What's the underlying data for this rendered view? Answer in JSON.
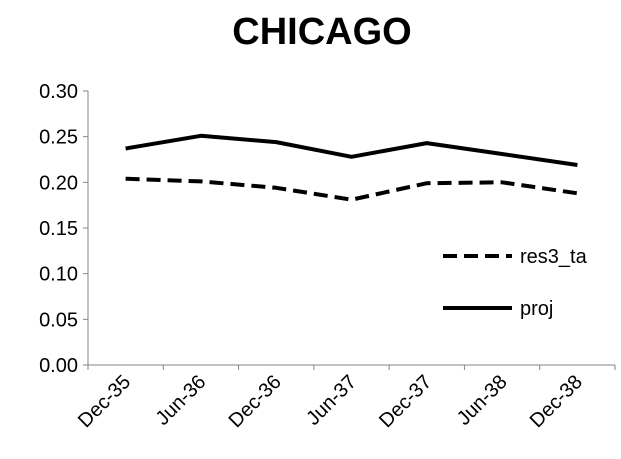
{
  "chart_data": {
    "type": "line",
    "title": "CHICAGO",
    "xlabel": "",
    "ylabel": "",
    "categories": [
      "Dec-35",
      "Jun-36",
      "Dec-36",
      "Jun-37",
      "Dec-37",
      "Jun-38",
      "Dec-38"
    ],
    "ylim": [
      0,
      0.3
    ],
    "yticks": [
      "0.00",
      "0.05",
      "0.10",
      "0.15",
      "0.20",
      "0.25",
      "0.30"
    ],
    "grid": false,
    "legend_position": "right",
    "series": [
      {
        "name": "res3_ta",
        "style": "dashed",
        "color": "#000000",
        "values": [
          0.204,
          0.201,
          0.194,
          0.181,
          0.199,
          0.2,
          0.188
        ]
      },
      {
        "name": "proj",
        "style": "solid",
        "color": "#000000",
        "values": [
          0.237,
          0.251,
          0.244,
          0.228,
          0.243,
          0.231,
          0.219
        ]
      }
    ]
  }
}
